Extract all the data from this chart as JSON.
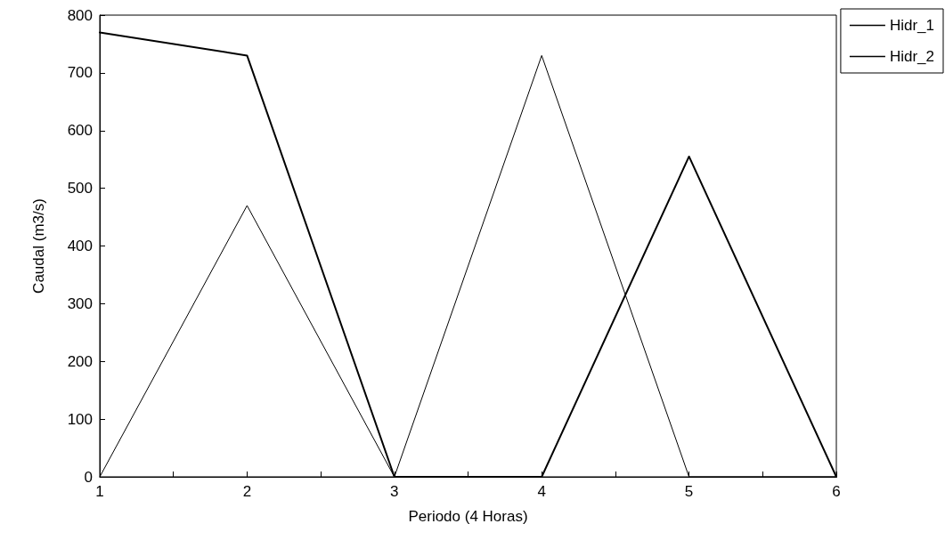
{
  "chart_data": {
    "type": "line",
    "xlabel": "Periodo (4 Horas)",
    "ylabel": "Caudal (m3/s)",
    "x": [
      1,
      2,
      3,
      4,
      5,
      6
    ],
    "series": [
      {
        "name": "Hidr_1",
        "color": "#000000",
        "values": [
          0,
          470,
          0,
          730,
          0,
          0
        ]
      },
      {
        "name": "Hidr_2",
        "color": "#000000",
        "values": [
          770,
          730,
          0,
          0,
          555,
          0
        ]
      }
    ],
    "xlim": [
      1,
      6
    ],
    "xticks": [
      1,
      {
        "value": 1.5,
        "label": null
      },
      2,
      {
        "value": 2.5,
        "label": null
      },
      3,
      {
        "value": 3.5,
        "label": null
      },
      4,
      {
        "value": 4.5,
        "label": null
      },
      5,
      {
        "value": 5.5,
        "label": null
      },
      6
    ],
    "ylim": [
      0,
      800
    ],
    "yticks": [
      0,
      100,
      200,
      300,
      400,
      500,
      600,
      700,
      800
    ],
    "grid": false,
    "legend": "top right",
    "marker": "none",
    "line_style": "solid"
  }
}
